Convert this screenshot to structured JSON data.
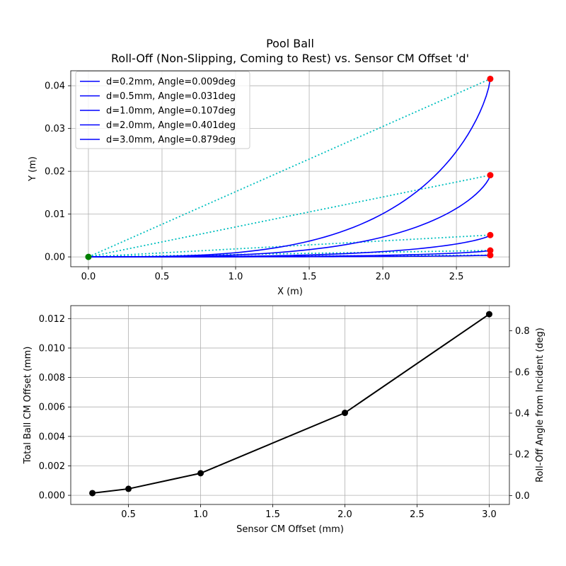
{
  "chart_data": [
    {
      "type": "line",
      "title": "Pool Ball",
      "subtitle": "Roll-Off (Non-Slipping, Coming to Rest) vs. Sensor CM Offset 'd'",
      "xlabel": "X (m)",
      "ylabel": "Y (m)",
      "xlim": [
        -0.12,
        2.86
      ],
      "ylim": [
        -0.0023,
        0.0435
      ],
      "xticks": [
        "0.0",
        "0.5",
        "1.0",
        "1.5",
        "2.0",
        "2.5"
      ],
      "yticks": [
        "0.00",
        "0.01",
        "0.02",
        "0.03",
        "0.04"
      ],
      "grid": true,
      "legend_position": "top-left",
      "end_x": 2.73,
      "start_point": [
        0,
        0
      ],
      "series": [
        {
          "name": "d=0.2mm, Angle=0.009deg",
          "end_y": 0.0004
        },
        {
          "name": "d=0.5mm, Angle=0.031deg",
          "end_y": 0.0015
        },
        {
          "name": "d=1.0mm, Angle=0.107deg",
          "end_y": 0.0051
        },
        {
          "name": "d=2.0mm, Angle=0.401deg",
          "end_y": 0.0191
        },
        {
          "name": "d=3.0mm, Angle=0.879deg",
          "end_y": 0.0416
        }
      ],
      "colors": {
        "trajectory": "#0000ff",
        "chord": "#00bfbf",
        "end_marker": "#ff0000",
        "start_marker": "#008000"
      }
    },
    {
      "type": "line",
      "xlabel": "Sensor CM Offset (mm)",
      "ylabel": "Total Ball CM Offset (mm)",
      "y2label": "Roll-Off Angle from Incident (deg)",
      "xlim": [
        0.1,
        3.14
      ],
      "ylim": [
        -0.00062,
        0.01288
      ],
      "y2lim": [
        -0.0434,
        0.9224
      ],
      "xticks": [
        "0.5",
        "1.0",
        "1.5",
        "2.0",
        "2.5",
        "3.0"
      ],
      "yticks": [
        "0.000",
        "0.002",
        "0.004",
        "0.006",
        "0.008",
        "0.010",
        "0.012"
      ],
      "y2ticks": [
        "0.0",
        "0.2",
        "0.4",
        "0.6",
        "0.8"
      ],
      "grid": true,
      "x": [
        0.25,
        0.5,
        1.0,
        2.0,
        3.0
      ],
      "values": [
        0.00015,
        0.00044,
        0.0015,
        0.0056,
        0.0123
      ],
      "colors": {
        "line": "#000000"
      }
    }
  ]
}
